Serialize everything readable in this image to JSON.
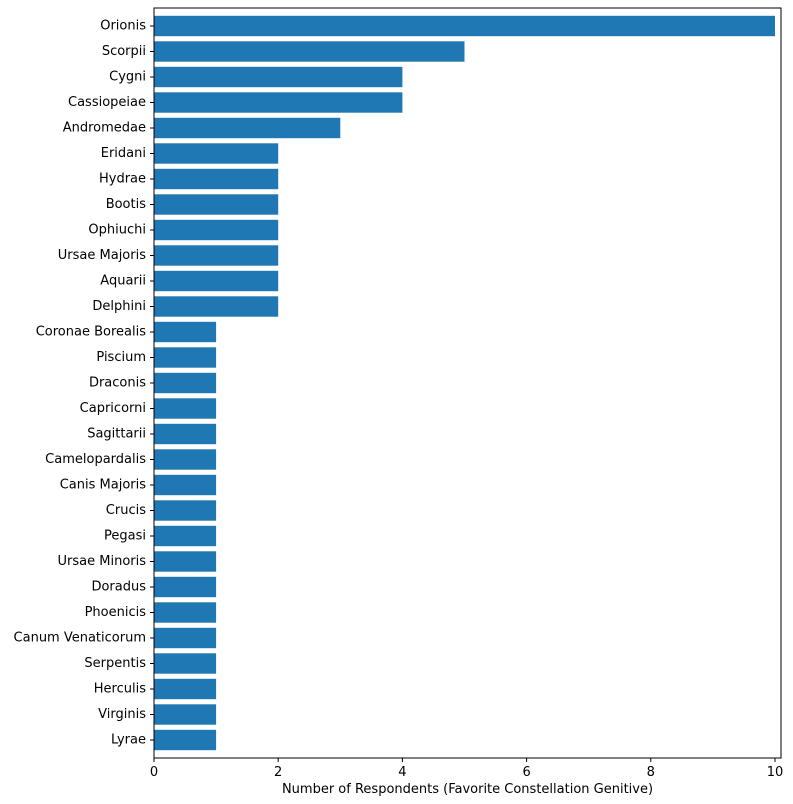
{
  "chart_data": {
    "type": "bar",
    "orientation": "horizontal",
    "categories": [
      "Orionis",
      "Scorpii",
      "Cygni",
      "Cassiopeiae",
      "Andromedae",
      "Eridani",
      "Hydrae",
      "Bootis",
      "Ophiuchi",
      "Ursae Majoris",
      "Aquarii",
      "Delphini",
      "Coronae Borealis",
      "Piscium",
      "Draconis",
      "Capricorni",
      "Sagittarii",
      "Camelopardalis",
      "Canis Majoris",
      "Crucis",
      "Pegasi",
      "Ursae Minoris",
      "Doradus",
      "Phoenicis",
      "Canum Venaticorum",
      "Serpentis",
      "Herculis",
      "Virginis",
      "Lyrae"
    ],
    "values": [
      10,
      5,
      4,
      4,
      3,
      2,
      2,
      2,
      2,
      2,
      2,
      2,
      1,
      1,
      1,
      1,
      1,
      1,
      1,
      1,
      1,
      1,
      1,
      1,
      1,
      1,
      1,
      1,
      1
    ],
    "title": "",
    "xlabel": "Number of Respondents (Favorite Constellation Genitive)",
    "ylabel": "",
    "xlim": [
      0,
      10
    ],
    "xticks": [
      "0",
      "2",
      "4",
      "6",
      "8",
      "10"
    ],
    "grid": false,
    "colors": {
      "bar": "#1f77b4",
      "axis": "#000000"
    }
  }
}
